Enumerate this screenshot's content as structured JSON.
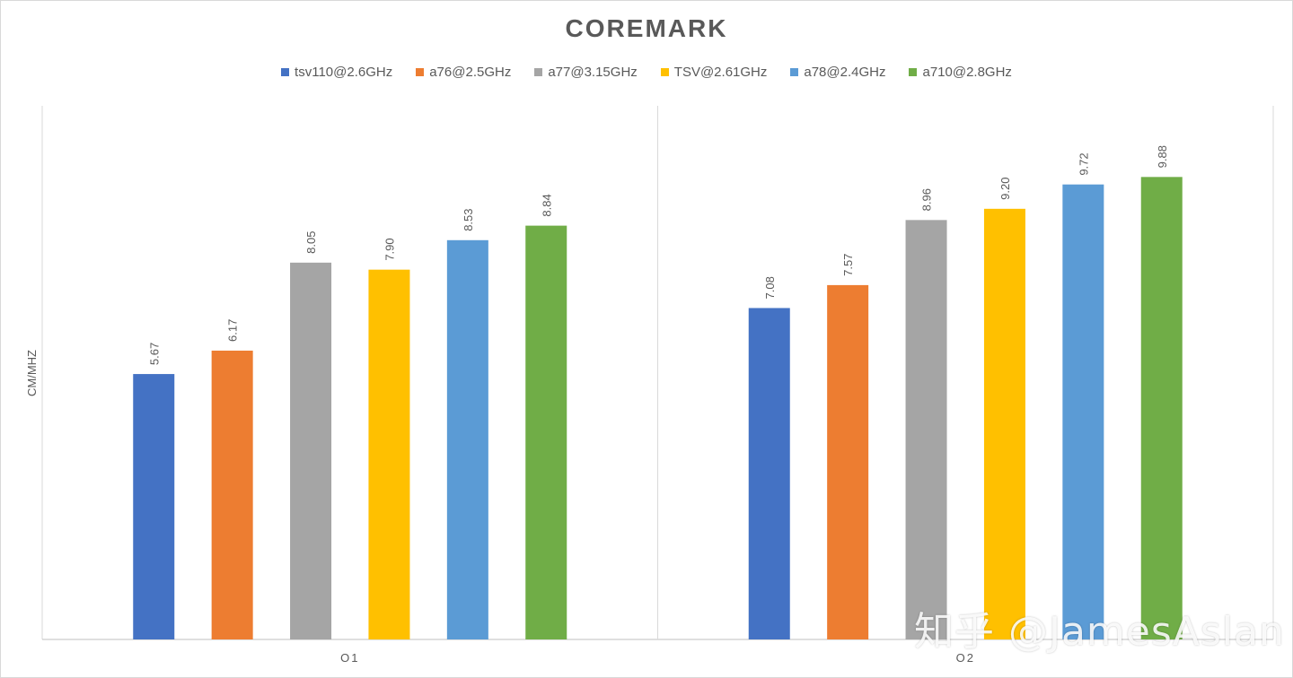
{
  "chart_data": {
    "type": "bar",
    "title": "COREMARK",
    "ylabel": "CM/MHZ",
    "xlabel": "",
    "categories": [
      "O1",
      "O2"
    ],
    "ylim": [
      0,
      11.4
    ],
    "grid": false,
    "legend_position": "top",
    "series": [
      {
        "name": "tsv110@2.6GHz",
        "color": "#4472c4",
        "values": [
          5.67,
          7.08
        ],
        "labels": [
          "5.67",
          "7.08"
        ]
      },
      {
        "name": "a76@2.5GHz",
        "color": "#ed7d31",
        "values": [
          6.17,
          7.57
        ],
        "labels": [
          "6.17",
          "7.57"
        ]
      },
      {
        "name": "a77@3.15GHz",
        "color": "#a5a5a5",
        "values": [
          8.05,
          8.96
        ],
        "labels": [
          "8.05",
          "8.96"
        ]
      },
      {
        "name": "TSV@2.61GHz",
        "color": "#ffc000",
        "values": [
          7.9,
          9.2
        ],
        "labels": [
          "7.90",
          "9.20"
        ]
      },
      {
        "name": "a78@2.4GHz",
        "color": "#5b9bd5",
        "values": [
          8.53,
          9.72
        ],
        "labels": [
          "8.53",
          "9.72"
        ]
      },
      {
        "name": "a710@2.8GHz",
        "color": "#70ad47",
        "values": [
          8.84,
          9.88
        ],
        "labels": [
          "8.84",
          "9.88"
        ]
      }
    ]
  },
  "watermark": "知乎 @JamesAslan"
}
